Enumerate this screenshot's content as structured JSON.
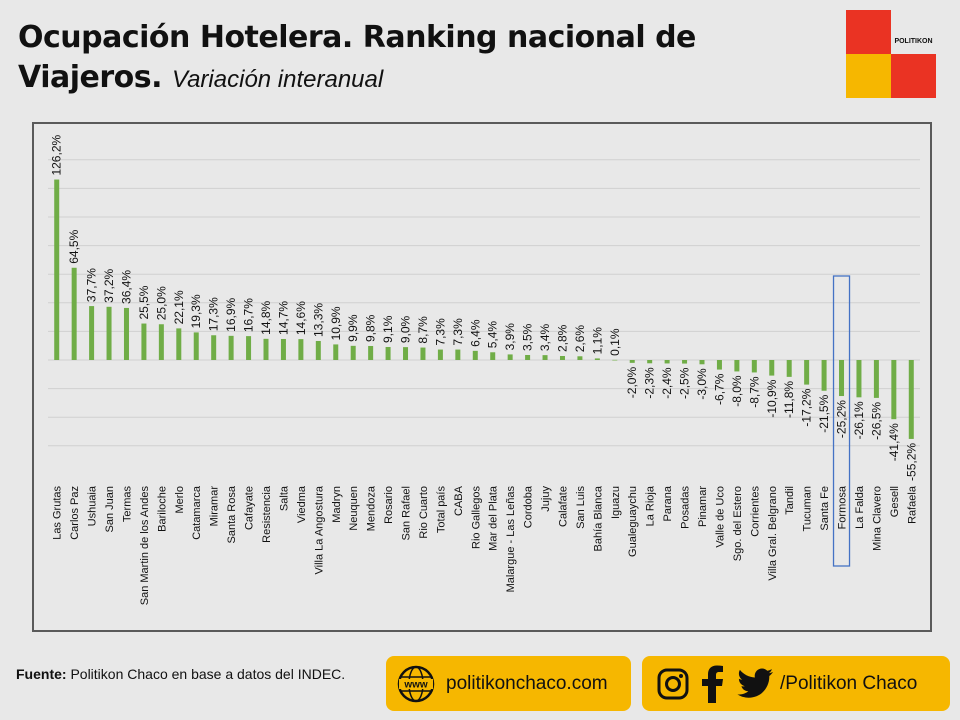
{
  "header": {
    "title": "Ocupación Hotelera. Ranking nacional de Viajeros.",
    "subtitle": "Variación interanual"
  },
  "logo": {
    "text": "POLITIKON",
    "colors": {
      "red": "#ea3323",
      "yellow": "#f6b700",
      "white": "#e8e8e8"
    }
  },
  "chart_data": {
    "type": "bar",
    "title": "",
    "xlabel": "",
    "ylabel": "",
    "bar_color": "#70ad47",
    "highlight_color": "#4472c4",
    "highlight_category": "Formosa",
    "grid": true,
    "ylim": [
      -60,
      140
    ],
    "categories": [
      "Las Grutas",
      "Carlos Paz",
      "Ushuaia",
      "San Juan",
      "Termas",
      "San Martin de los Andes",
      "Bariloche",
      "Merlo",
      "Catamarca",
      "Miramar",
      "Santa Rosa",
      "Cafayate",
      "Resistencia",
      "Salta",
      "Viedma",
      "Villa La Angostura",
      "Madryn",
      "Neuquen",
      "Mendoza",
      "Rosario",
      "San Rafael",
      "Rio Cuarto",
      "Total país",
      "CABA",
      "Rio Gallegos",
      "Mar del Plata",
      "Malargue - Las Leñas",
      "Cordoba",
      "Jujuy",
      "Calafate",
      "San Luis",
      "Bahía Blanca",
      "Iguazu",
      "Gualeguaychu",
      "La Rioja",
      "Parana",
      "Posadas",
      "Pinamar",
      "Valle de Uco",
      "Sgo. del Estero",
      "Corrientes",
      "Villa Gral. Belgrano",
      "Tandil",
      "Tucuman",
      "Santa Fe",
      "Formosa",
      "La Falda",
      "Mina Clavero",
      "Gesell",
      "Rafaela"
    ],
    "values": [
      126.2,
      64.5,
      37.7,
      37.2,
      36.4,
      25.5,
      25.0,
      22.1,
      19.3,
      17.3,
      16.9,
      16.7,
      14.8,
      14.7,
      14.6,
      13.3,
      10.9,
      9.9,
      9.8,
      9.1,
      9.0,
      8.7,
      7.3,
      7.3,
      6.4,
      5.4,
      3.9,
      3.5,
      3.4,
      2.8,
      2.6,
      1.1,
      0.1,
      -2.0,
      -2.3,
      -2.4,
      -2.5,
      -3.0,
      -6.7,
      -8.0,
      -8.7,
      -10.9,
      -11.8,
      -17.2,
      -21.5,
      -25.2,
      -26.1,
      -26.5,
      -41.4,
      -55.2
    ],
    "data_labels": [
      "126,2%",
      "64,5%",
      "37,7%",
      "37,2%",
      "36,4%",
      "25,5%",
      "25,0%",
      "22,1%",
      "19,3%",
      "17,3%",
      "16,9%",
      "16,7%",
      "14,8%",
      "14,7%",
      "14,6%",
      "13,3%",
      "10,9%",
      "9,9%",
      "9,8%",
      "9,1%",
      "9,0%",
      "8,7%",
      "7,3%",
      "7,3%",
      "6,4%",
      "5,4%",
      "3,9%",
      "3,5%",
      "3,4%",
      "2,8%",
      "2,6%",
      "1,1%",
      "0,1%",
      "-2,0%",
      "-2,3%",
      "-2,4%",
      "-2,5%",
      "-3,0%",
      "-6,7%",
      "-8,0%",
      "-8,7%",
      "-10,9%",
      "-11,8%",
      "-17,2%",
      "-21,5%",
      "-25,2%",
      "-26,1%",
      "-26,5%",
      "-41,4%",
      "-55,2%"
    ]
  },
  "footer": {
    "source_label": "Fuente:",
    "source_text": " Politikon Chaco en base a datos del INDEC.",
    "website": "politikonchaco.com",
    "website_icon_text": "www",
    "social_handle": "/Politikon Chaco",
    "colors": {
      "pill": "#f6b700"
    }
  }
}
